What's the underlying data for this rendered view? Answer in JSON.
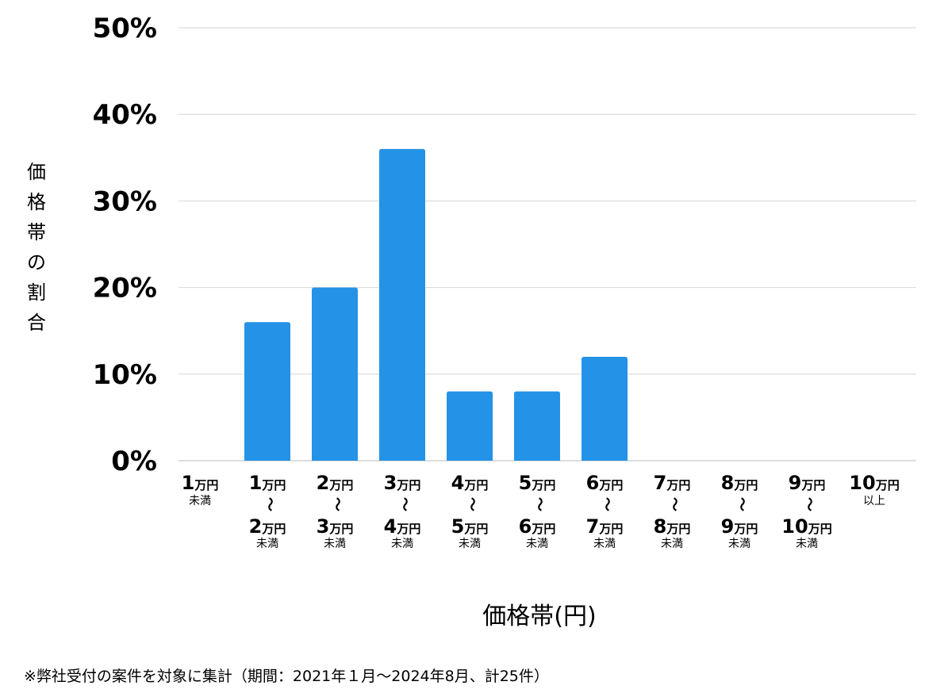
{
  "chart_data": {
    "type": "bar",
    "title": "",
    "xlabel": "価格帯(円)",
    "ylabel": "価格帯の割合",
    "ylim": [
      0,
      50
    ],
    "yticks": [
      "0%",
      "10%",
      "20%",
      "30%",
      "40%",
      "50%"
    ],
    "ytick_values": [
      0,
      10,
      20,
      30,
      40,
      50
    ],
    "grid": true,
    "bar_color": "#2492e6",
    "unit": "万円",
    "categories": [
      {
        "from": "1",
        "to": null,
        "suffix": "未満"
      },
      {
        "from": "1",
        "to": "2",
        "suffix": "未満"
      },
      {
        "from": "2",
        "to": "3",
        "suffix": "未満"
      },
      {
        "from": "3",
        "to": "4",
        "suffix": "未満"
      },
      {
        "from": "4",
        "to": "5",
        "suffix": "未満"
      },
      {
        "from": "5",
        "to": "6",
        "suffix": "未満"
      },
      {
        "from": "6",
        "to": "7",
        "suffix": "未満"
      },
      {
        "from": "7",
        "to": "8",
        "suffix": "未満"
      },
      {
        "from": "8",
        "to": "9",
        "suffix": "未満"
      },
      {
        "from": "9",
        "to": "10",
        "suffix": "未満"
      },
      {
        "from": "10",
        "to": null,
        "suffix": "以上"
      }
    ],
    "values": [
      0,
      16,
      20,
      36,
      8,
      8,
      12,
      0,
      0,
      0,
      0
    ],
    "note": "※弊社受付の案件を対象に集計（期間：2021年１月～2024年8月、計25件）"
  }
}
